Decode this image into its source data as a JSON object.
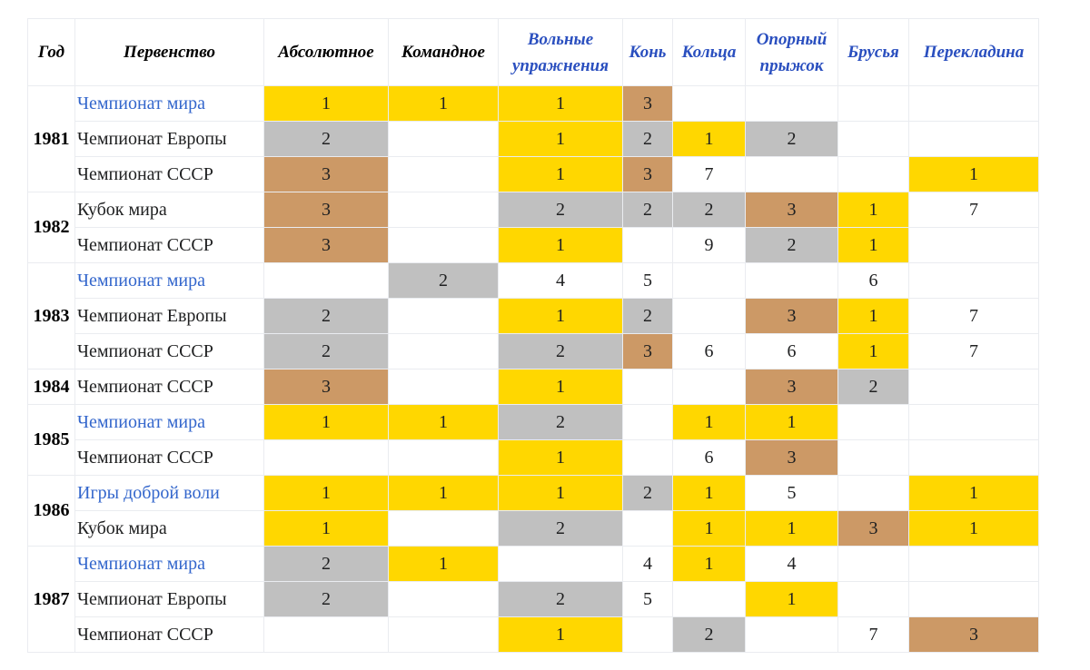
{
  "colors": {
    "gold": "#FFD700",
    "silver": "#C0C0C0",
    "bronze": "#CC9966",
    "link": "#3366CC"
  },
  "headers": [
    {
      "label": "Год",
      "link": false
    },
    {
      "label": "Первенство",
      "link": false
    },
    {
      "label": "Абсолютное",
      "link": false
    },
    {
      "label": "Командное",
      "link": false
    },
    {
      "label": "Вольные упражнения",
      "link": true
    },
    {
      "label": "Конь",
      "link": true
    },
    {
      "label": "Кольца",
      "link": true
    },
    {
      "label": "Опорный прыжок",
      "link": true
    },
    {
      "label": "Брусья",
      "link": true
    },
    {
      "label": "Перекладина",
      "link": true
    }
  ],
  "years": [
    {
      "year": "1981",
      "events": [
        {
          "name": "Чемпионат мира",
          "link": true,
          "results": [
            "1",
            "1",
            "1",
            "3",
            "",
            "",
            "",
            ""
          ]
        },
        {
          "name": "Чемпионат Европы",
          "link": false,
          "results": [
            "2",
            "",
            "1",
            "2",
            "1",
            "2",
            "",
            ""
          ]
        },
        {
          "name": "Чемпионат СССР",
          "link": false,
          "results": [
            "3",
            "",
            "1",
            "3",
            "7",
            "",
            "",
            "1"
          ]
        }
      ]
    },
    {
      "year": "1982",
      "events": [
        {
          "name": "Кубок мира",
          "link": false,
          "results": [
            "3",
            "",
            "2",
            "2",
            "2",
            "3",
            "1",
            "7"
          ]
        },
        {
          "name": "Чемпионат СССР",
          "link": false,
          "results": [
            "3",
            "",
            "1",
            "",
            "9",
            "2",
            "1",
            ""
          ]
        }
      ]
    },
    {
      "year": "1983",
      "events": [
        {
          "name": "Чемпионат мира",
          "link": true,
          "results": [
            "",
            "2",
            "4",
            "5",
            "",
            "",
            "6",
            ""
          ]
        },
        {
          "name": "Чемпионат Европы",
          "link": false,
          "results": [
            "2",
            "",
            "1",
            "2",
            "",
            "3",
            "1",
            "7"
          ]
        },
        {
          "name": "Чемпионат СССР",
          "link": false,
          "results": [
            "2",
            "",
            "2",
            "3",
            "6",
            "6",
            "1",
            "7"
          ]
        }
      ]
    },
    {
      "year": "1984",
      "events": [
        {
          "name": "Чемпионат СССР",
          "link": false,
          "results": [
            "3",
            "",
            "1",
            "",
            "",
            "3",
            "2",
            ""
          ]
        }
      ]
    },
    {
      "year": "1985",
      "events": [
        {
          "name": "Чемпионат мира",
          "link": true,
          "results": [
            "1",
            "1",
            "2",
            "",
            "1",
            "1",
            "",
            ""
          ]
        },
        {
          "name": "Чемпионат СССР",
          "link": false,
          "results": [
            "",
            "",
            "1",
            "",
            "6",
            "3",
            "",
            ""
          ]
        }
      ]
    },
    {
      "year": "1986",
      "events": [
        {
          "name": "Игры доброй воли",
          "link": true,
          "results": [
            "1",
            "1",
            "1",
            "2",
            "1",
            "5",
            "",
            "1"
          ]
        },
        {
          "name": "Кубок мира",
          "link": false,
          "results": [
            "1",
            "",
            "2",
            "",
            "1",
            "1",
            "3",
            "1"
          ]
        }
      ]
    },
    {
      "year": "1987",
      "events": [
        {
          "name": "Чемпионат мира",
          "link": true,
          "results": [
            "2",
            "1",
            "",
            "4",
            "1",
            "4",
            "",
            ""
          ]
        },
        {
          "name": "Чемпионат Европы",
          "link": false,
          "results": [
            "2",
            "",
            "2",
            "5",
            "",
            "1",
            "",
            ""
          ]
        },
        {
          "name": "Чемпионат СССР",
          "link": false,
          "results": [
            "",
            "",
            "1",
            "",
            "2",
            "",
            "7",
            "3"
          ]
        }
      ]
    }
  ]
}
